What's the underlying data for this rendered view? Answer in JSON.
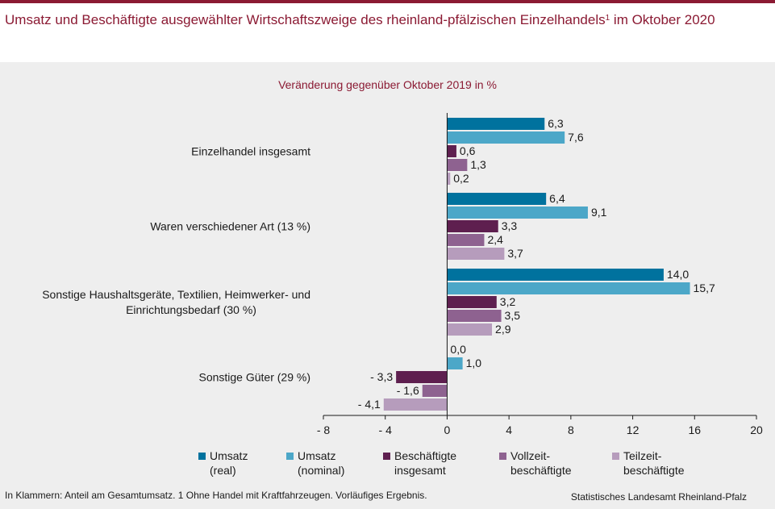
{
  "header": {
    "title": "Umsatz und Beschäftigte ausgewählter Wirtschaftszweige des rheinland-pfälzischen Einzelhandels",
    "title_sup": "1",
    "title_rest": " im Oktober 2020"
  },
  "footer": {
    "footnote": "In Klammern: Anteil am Gesamtumsatz. 1 Ohne Handel mit Kraftfahrzeugen. Vorläufiges Ergebnis.",
    "source": "Statistisches Landesamt Rheinland-Pfalz"
  },
  "chart_data": {
    "type": "bar",
    "orientation": "horizontal",
    "subtitle": "Veränderung gegenüber Oktober 2019 in %",
    "categories": [
      "Einzelhandel insgesamt",
      "Waren verschiedener Art (13 %)",
      "Sonstige Haushaltsgeräte, Textilien, Heimwerker- und\nEinrichtungsbedarf (30 %)",
      "Sonstige Güter (29 %)"
    ],
    "series": [
      {
        "name": "Umsatz\n(real)",
        "color": "#00729e",
        "values": [
          6.3,
          6.4,
          14.0,
          0.0
        ],
        "labels": [
          "6,3",
          "6,4",
          "14,0",
          "0,0"
        ]
      },
      {
        "name": "Umsatz\n(nominal)",
        "color": "#4ca7c8",
        "values": [
          7.6,
          9.1,
          15.7,
          1.0
        ],
        "labels": [
          "7,6",
          "9,1",
          "15,7",
          "1,0"
        ]
      },
      {
        "name": "Beschäftigte\ninsgesamt",
        "color": "#5e1f4f",
        "values": [
          0.6,
          3.3,
          3.2,
          -3.3
        ],
        "labels": [
          "0,6",
          "3,3",
          "3,2",
          "- 3,3"
        ]
      },
      {
        "name": "Vollzeit-\nbeschäftigte",
        "color": "#8e6290",
        "values": [
          1.3,
          2.4,
          3.5,
          -1.6
        ],
        "labels": [
          "1,3",
          "2,4",
          "3,5",
          "- 1,6"
        ]
      },
      {
        "name": "Teilzeit-\nbeschäftigte",
        "color": "#b69cbc",
        "values": [
          0.2,
          3.7,
          2.9,
          -4.1
        ],
        "labels": [
          "0,2",
          "3,7",
          "2,9",
          "- 4,1"
        ]
      }
    ],
    "xlim": [
      -8,
      20
    ],
    "xticks": [
      -8,
      -4,
      0,
      4,
      8,
      12,
      16,
      20
    ],
    "xtick_labels": [
      "- 8",
      "- 4",
      "0",
      "4",
      "8",
      "12",
      "16",
      "20"
    ],
    "grid": false,
    "legend": "bottom",
    "label_color": "#1a1a1a",
    "axis_color": "#1a1a1a"
  }
}
